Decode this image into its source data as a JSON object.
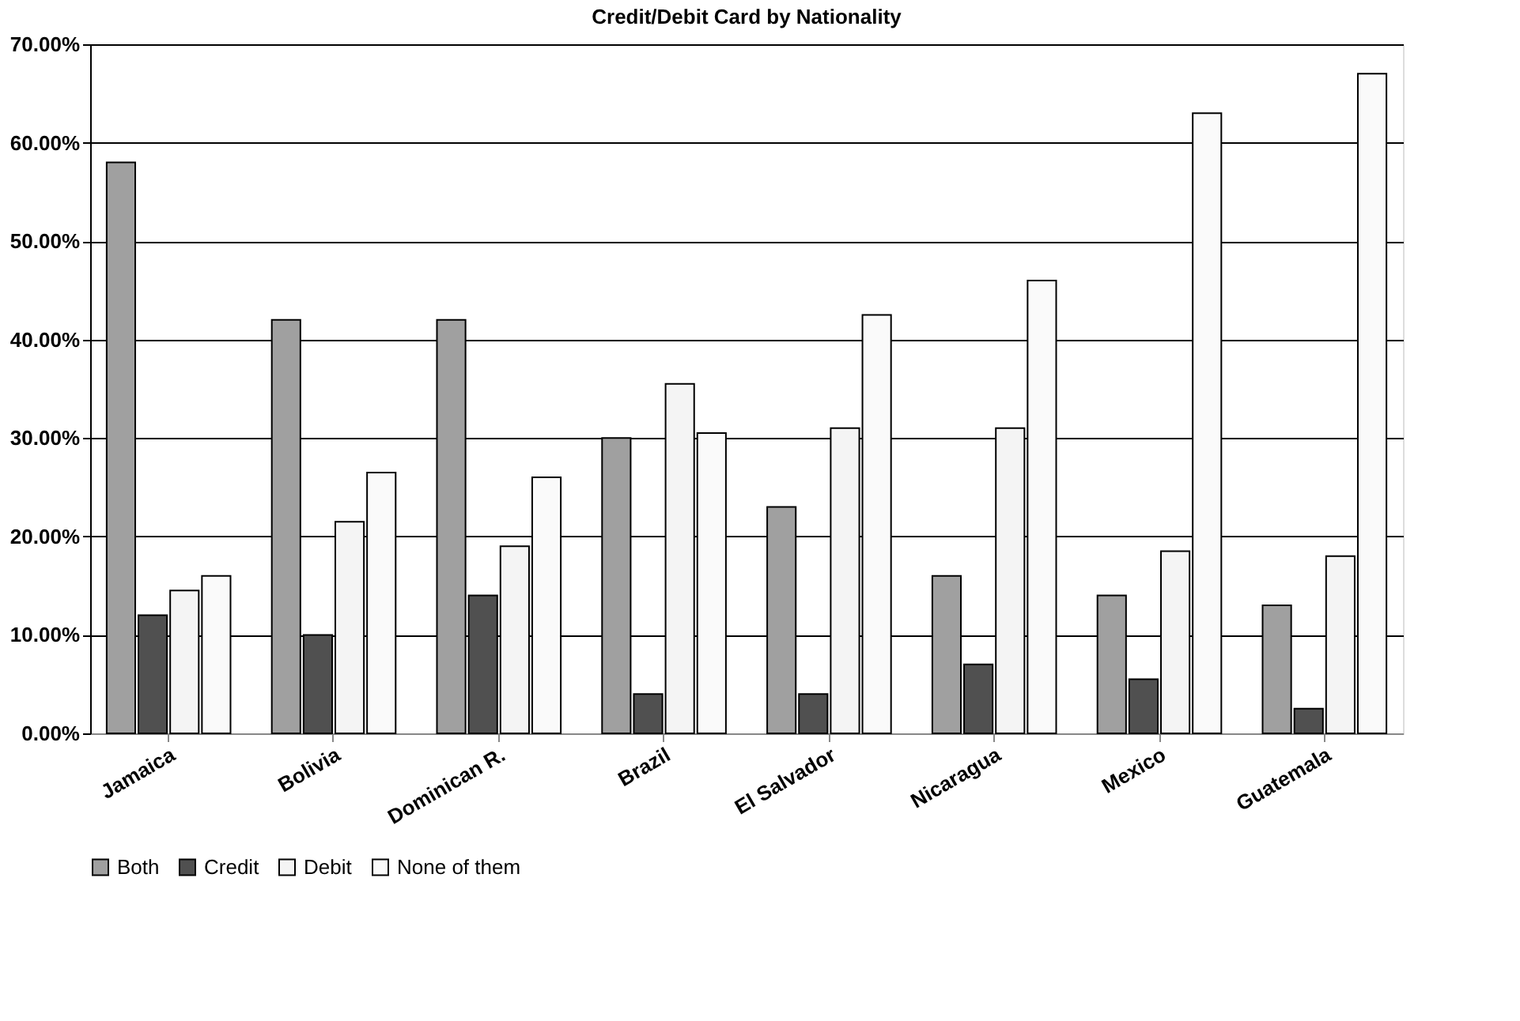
{
  "chart_data": {
    "type": "bar",
    "title": "Credit/Debit Card by Nationality",
    "categories": [
      "Jamaica",
      "Bolivia",
      "Dominican R.",
      "Brazil",
      "El Salvador",
      "Nicaragua",
      "Mexico",
      "Guatemala"
    ],
    "series": [
      {
        "name": "Both",
        "color": "#a0a0a0",
        "values": [
          58,
          42,
          42,
          30,
          23,
          16,
          14,
          13
        ]
      },
      {
        "name": "Credit",
        "color": "#505050",
        "values": [
          12,
          10,
          14,
          4,
          4,
          7,
          5.5,
          2.5
        ]
      },
      {
        "name": "Debit",
        "color": "#f4f4f4",
        "values": [
          14.5,
          21.5,
          19,
          35.5,
          31,
          31,
          18.5,
          18
        ]
      },
      {
        "name": "None of them",
        "color": "#fafafa",
        "values": [
          16,
          26.5,
          26,
          30.5,
          42.5,
          46,
          63,
          67
        ]
      }
    ],
    "ylim": [
      0,
      70
    ],
    "yticks": [
      {
        "value": 0,
        "label": "0.00%"
      },
      {
        "value": 10,
        "label": "10.00%"
      },
      {
        "value": 20,
        "label": "20.00%"
      },
      {
        "value": 30,
        "label": "30.00%"
      },
      {
        "value": 40,
        "label": "40.00%"
      },
      {
        "value": 50,
        "label": "50.00%"
      },
      {
        "value": 60,
        "label": "60.00%"
      },
      {
        "value": 70,
        "label": "70.00%"
      }
    ],
    "grid": "y",
    "legend": "bottom"
  }
}
